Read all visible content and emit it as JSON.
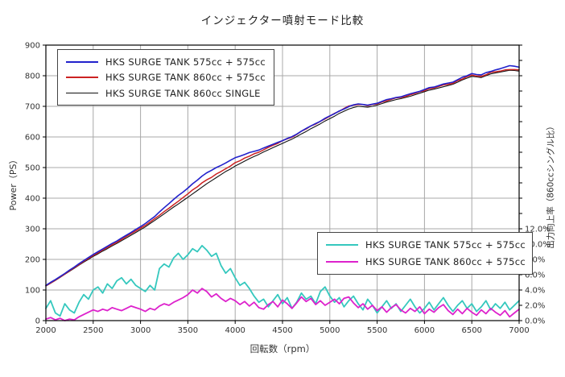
{
  "chart_data": {
    "type": "line",
    "title": "インジェクター噴射モード比較",
    "xlabel": "回転数（rpm）",
    "ylabel_left": "Power（PS）",
    "ylabel_right": "出力向上率（860ccシングル比）",
    "x_range": [
      2000,
      7000
    ],
    "y_left_range": [
      0,
      900
    ],
    "y_right_range": [
      0,
      36
    ],
    "x_ticks": [
      2000,
      2500,
      3000,
      3500,
      4000,
      4500,
      5000,
      5500,
      6000,
      6500,
      7000
    ],
    "y_left_ticks": [
      0,
      100,
      200,
      300,
      400,
      500,
      600,
      700,
      800,
      900
    ],
    "y_right_ticks": [
      0,
      2,
      4,
      6,
      8,
      10,
      12
    ],
    "y_right_tick_labels": [
      "0.0%",
      "2.0%",
      "4.0%",
      "6.0%",
      "8.0%",
      "10.0%",
      "12.0%"
    ],
    "y_right_minor_tick_step": 2,
    "grid": true,
    "colors": {
      "grid": "#a8a8a8",
      "axis": "#000000",
      "text": "#333333"
    },
    "rpm": [
      2000,
      2050,
      2100,
      2150,
      2200,
      2250,
      2300,
      2350,
      2400,
      2450,
      2500,
      2550,
      2600,
      2650,
      2700,
      2750,
      2800,
      2850,
      2900,
      2950,
      3000,
      3050,
      3100,
      3150,
      3200,
      3250,
      3300,
      3350,
      3400,
      3450,
      3500,
      3550,
      3600,
      3650,
      3700,
      3750,
      3800,
      3850,
      3900,
      3950,
      4000,
      4050,
      4100,
      4150,
      4200,
      4250,
      4300,
      4350,
      4400,
      4450,
      4500,
      4550,
      4600,
      4650,
      4700,
      4750,
      4800,
      4850,
      4900,
      4950,
      5000,
      5050,
      5100,
      5150,
      5200,
      5250,
      5300,
      5350,
      5400,
      5450,
      5500,
      5550,
      5600,
      5650,
      5700,
      5750,
      5800,
      5850,
      5900,
      5950,
      6000,
      6050,
      6100,
      6150,
      6200,
      6250,
      6300,
      6350,
      6400,
      6450,
      6500,
      6550,
      6600,
      6650,
      6700,
      6750,
      6800,
      6850,
      6900,
      6950,
      7000
    ],
    "series": [
      {
        "id": "power-575-575",
        "name": "HKS SURGE TANK 575cc + 575cc",
        "axis": "left",
        "unit": "PS",
        "color": "#2222cc",
        "values": [
          115,
          125,
          134,
          144,
          154,
          165,
          175,
          186,
          196,
          206,
          216,
          225,
          234,
          243,
          252,
          260,
          270,
          279,
          288,
          298,
          307,
          317,
          329,
          340,
          355,
          369,
          382,
          396,
          409,
          420,
          433,
          447,
          459,
          472,
          483,
          491,
          500,
          507,
          515,
          524,
          532,
          537,
          543,
          549,
          553,
          557,
          564,
          570,
          576,
          582,
          588,
          595,
          601,
          609,
          619,
          628,
          636,
          644,
          651,
          661,
          669,
          676,
          685,
          691,
          699,
          705,
          708,
          706,
          704,
          707,
          710,
          716,
          722,
          725,
          729,
          731,
          736,
          741,
          745,
          749,
          755,
          761,
          763,
          768,
          773,
          776,
          779,
          787,
          795,
          800,
          807,
          804,
          803,
          810,
          814,
          819,
          823,
          828,
          833,
          831,
          828
        ]
      },
      {
        "id": "power-860-575",
        "name": "HKS SURGE TANK 860cc + 575cc",
        "axis": "left",
        "unit": "PS",
        "color": "#cc2222",
        "values": [
          114,
          123,
          132,
          142,
          152,
          163,
          173,
          183,
          194,
          203,
          213,
          221,
          231,
          239,
          248,
          256,
          265,
          275,
          284,
          293,
          302,
          311,
          322,
          333,
          344,
          356,
          367,
          379,
          390,
          402,
          414,
          427,
          437,
          450,
          460,
          468,
          479,
          487,
          496,
          505,
          516,
          522,
          531,
          537,
          545,
          550,
          558,
          566,
          573,
          579,
          588,
          594,
          599,
          608,
          619,
          626,
          636,
          642,
          651,
          659,
          668,
          677,
          684,
          693,
          701,
          704,
          706,
          706,
          702,
          706,
          708,
          714,
          718,
          723,
          728,
          729,
          732,
          738,
          742,
          748,
          751,
          758,
          760,
          765,
          770,
          772,
          775,
          784,
          789,
          797,
          802,
          799,
          798,
          803,
          811,
          813,
          815,
          819,
          820,
          820,
          819
        ]
      },
      {
        "id": "power-860-single",
        "name": "HKS SURGE TANK 860cc SINGLE",
        "axis": "left",
        "unit": "PS",
        "color": "#111111",
        "values": [
          113,
          122,
          131,
          141,
          151,
          161,
          171,
          181,
          191,
          200,
          210,
          218,
          227,
          235,
          244,
          252,
          261,
          270,
          279,
          288,
          297,
          306,
          317,
          327,
          338,
          349,
          360,
          371,
          381,
          392,
          403,
          414,
          425,
          436,
          447,
          457,
          467,
          477,
          487,
          495,
          505,
          513,
          521,
          529,
          536,
          543,
          551,
          558,
          565,
          572,
          579,
          586,
          593,
          601,
          610,
          618,
          627,
          635,
          643,
          652,
          660,
          668,
          677,
          684,
          691,
          696,
          700,
          699,
          697,
          700,
          704,
          709,
          714,
          718,
          722,
          725,
          729,
          733,
          738,
          743,
          748,
          753,
          756,
          760,
          764,
          768,
          772,
          779,
          786,
          792,
          798,
          796,
          794,
          800,
          806,
          809,
          812,
          815,
          818,
          817,
          815
        ]
      },
      {
        "id": "gain-575-575",
        "name": "HKS SURGE TANK 575cc + 575cc",
        "axis": "right",
        "unit": "%",
        "color": "#35c8be",
        "values": [
          1.6,
          2.6,
          1.0,
          0.6,
          2.2,
          1.4,
          1.0,
          2.4,
          3.4,
          2.8,
          4.0,
          4.4,
          3.6,
          4.8,
          4.2,
          5.2,
          5.6,
          4.8,
          5.4,
          4.6,
          4.2,
          3.8,
          4.6,
          4.0,
          6.8,
          7.4,
          7.0,
          8.2,
          8.8,
          8.0,
          8.6,
          9.4,
          9.0,
          9.8,
          9.2,
          8.4,
          8.8,
          7.2,
          6.2,
          6.8,
          5.6,
          4.6,
          5.0,
          4.2,
          3.2,
          2.4,
          2.8,
          1.8,
          2.6,
          3.4,
          2.2,
          3.0,
          1.6,
          2.4,
          3.6,
          2.8,
          3.2,
          2.2,
          3.8,
          4.4,
          3.2,
          2.4,
          3.0,
          1.8,
          2.6,
          3.2,
          2.2,
          1.4,
          2.8,
          2.0,
          1.0,
          1.8,
          2.6,
          1.6,
          2.2,
          1.2,
          2.0,
          2.8,
          1.8,
          1.0,
          1.6,
          2.4,
          1.4,
          2.2,
          3.0,
          2.0,
          1.2,
          2.0,
          2.6,
          1.6,
          2.2,
          1.2,
          1.8,
          2.6,
          1.4,
          2.2,
          1.6,
          2.4,
          1.4,
          2.0,
          2.6
        ]
      },
      {
        "id": "gain-860-575",
        "name": "HKS SURGE TANK 860cc + 575cc",
        "axis": "right",
        "unit": "%",
        "color": "#dd22cc",
        "values": [
          0.2,
          0.4,
          0.1,
          0.3,
          0.0,
          0.2,
          0.1,
          0.5,
          0.8,
          1.1,
          1.4,
          1.2,
          1.5,
          1.3,
          1.7,
          1.5,
          1.3,
          1.6,
          1.9,
          1.7,
          1.5,
          1.2,
          1.6,
          1.4,
          1.9,
          2.2,
          2.0,
          2.4,
          2.7,
          3.0,
          3.4,
          4.0,
          3.6,
          4.2,
          3.8,
          3.1,
          3.5,
          2.9,
          2.5,
          2.9,
          2.6,
          2.1,
          2.5,
          1.9,
          2.4,
          1.7,
          1.5,
          2.1,
          2.5,
          1.8,
          2.7,
          2.2,
          1.6,
          2.3,
          3.1,
          2.5,
          2.9,
          2.1,
          2.6,
          2.0,
          2.4,
          2.8,
          2.2,
          2.9,
          3.1,
          2.3,
          1.7,
          2.2,
          1.5,
          2.0,
          1.3,
          1.8,
          1.1,
          1.7,
          2.1,
          1.4,
          1.0,
          1.6,
          1.2,
          1.8,
          0.9,
          1.5,
          1.1,
          1.7,
          2.1,
          1.3,
          0.8,
          1.5,
          0.9,
          1.6,
          1.1,
          0.7,
          1.4,
          0.9,
          1.6,
          1.1,
          0.7,
          1.3,
          0.5,
          1.0,
          1.5
        ]
      }
    ],
    "legend_power_title": "",
    "legend_positions": {
      "power": "upper-left",
      "gain": "lower-right"
    }
  }
}
